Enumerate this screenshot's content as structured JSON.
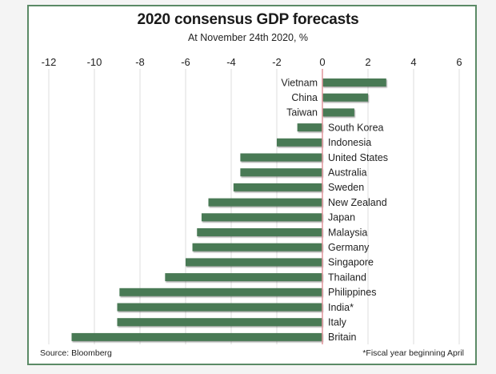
{
  "chart_data": {
    "type": "bar",
    "orientation": "horizontal",
    "title": "2020 consensus GDP forecasts",
    "subtitle": "At November 24th 2020, %",
    "xlabel": "",
    "ylabel": "",
    "xlim": [
      -12,
      6
    ],
    "xticks": [
      -12,
      -10,
      -8,
      -6,
      -4,
      -2,
      0,
      2,
      4,
      6
    ],
    "xtick_labels": [
      "-12",
      "-10",
      "-8",
      "-6",
      "-4",
      "-2",
      "0",
      "2",
      "4",
      "6"
    ],
    "grid": true,
    "categories": [
      "Vietnam",
      "China",
      "Taiwan",
      "South Korea",
      "Indonesia",
      "United States",
      "Australia",
      "Sweden",
      "New Zealand",
      "Japan",
      "Malaysia",
      "Germany",
      "Singapore",
      "Thailand",
      "Philippines",
      "India*",
      "Italy",
      "Britain"
    ],
    "values": [
      2.8,
      2.0,
      1.4,
      -1.1,
      -2.0,
      -3.6,
      -3.6,
      -3.9,
      -5.0,
      -5.3,
      -5.5,
      -5.7,
      -6.0,
      -6.9,
      -8.9,
      -9.0,
      -9.0,
      -11.0
    ],
    "colors": {
      "bar": "#4a7a55",
      "zero_line": "#e0959b",
      "grid": "#dcdcdc",
      "frame": "#5b8a66"
    }
  },
  "footer": {
    "source": "Source: Bloomberg",
    "footnote": "*Fiscal year beginning April"
  }
}
